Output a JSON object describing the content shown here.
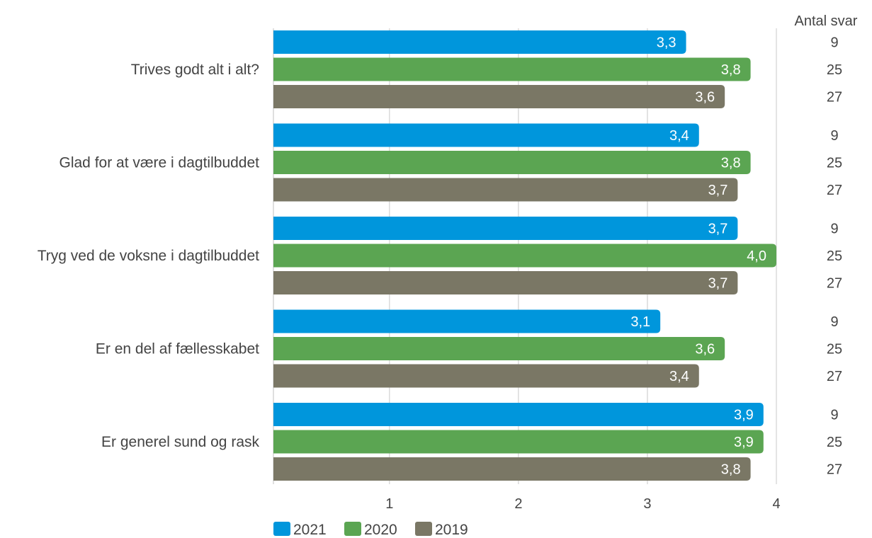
{
  "chart_data": {
    "type": "bar",
    "orientation": "horizontal",
    "categories": [
      "Trives godt alt i alt?",
      "Glad for at være i dagtilbuddet",
      "Tryg ved de voksne i dagtilbuddet",
      "Er en del af fællesskabet",
      "Er generel sund og rask"
    ],
    "series": [
      {
        "name": "2021",
        "color": "#0096DC",
        "values": [
          3.3,
          3.4,
          3.7,
          3.1,
          3.9
        ],
        "labels": [
          "3,3",
          "3,4",
          "3,7",
          "3,1",
          "3,9"
        ],
        "counts": [
          "9",
          "9",
          "9",
          "9",
          "9"
        ]
      },
      {
        "name": "2020",
        "color": "#5BA552",
        "values": [
          3.8,
          3.8,
          4.0,
          3.6,
          3.9
        ],
        "labels": [
          "3,8",
          "3,8",
          "4,0",
          "3,6",
          "3,9"
        ],
        "counts": [
          "25",
          "25",
          "25",
          "25",
          "25"
        ]
      },
      {
        "name": "2019",
        "color": "#7A7765",
        "values": [
          3.6,
          3.7,
          3.7,
          3.4,
          3.8
        ],
        "labels": [
          "3,6",
          "3,7",
          "3,7",
          "3,4",
          "3,8"
        ],
        "counts": [
          "27",
          "27",
          "27",
          "27",
          "27"
        ]
      }
    ],
    "xlim": [
      0.1,
      4
    ],
    "xticks": [
      1,
      2,
      3,
      4
    ],
    "xtick_labels": [
      "1",
      "2",
      "3",
      "4"
    ],
    "count_header": "Antal svar",
    "grid": true,
    "legend": "bottom-left",
    "title": "",
    "xlabel": "",
    "ylabel": ""
  }
}
